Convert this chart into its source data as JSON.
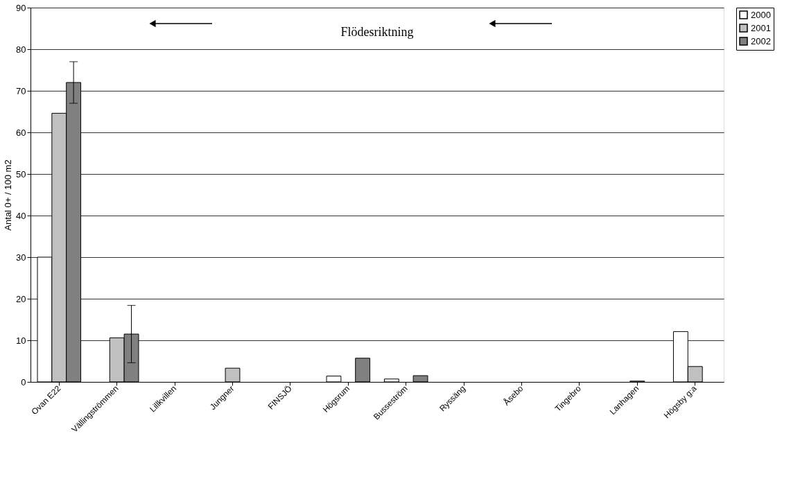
{
  "chart_data": {
    "type": "bar",
    "categories": [
      "Ovan E22",
      "Vällingströmmen",
      "Lillkvillen",
      "Jungner",
      "FINSJÖ",
      "Högsrum",
      "Busseström",
      "Ryssäng",
      "Åsebo",
      "Tingebro",
      "Lanhagen",
      "Högsby g:a"
    ],
    "series": [
      {
        "name": "2000",
        "color": "#ffffff",
        "values": [
          30,
          null,
          null,
          null,
          null,
          1.4,
          0.7,
          null,
          null,
          null,
          null,
          12.1
        ]
      },
      {
        "name": "2001",
        "color": "#c0c0c0",
        "values": [
          64.6,
          10.6,
          null,
          3.3,
          null,
          null,
          null,
          null,
          null,
          null,
          0.2,
          3.7
        ]
      },
      {
        "name": "2002",
        "color": "#808080",
        "values": [
          72,
          11.5,
          null,
          null,
          null,
          5.7,
          1.5,
          null,
          null,
          null,
          null,
          null
        ],
        "errors": [
          5,
          6.9,
          null,
          null,
          null,
          null,
          null,
          null,
          null,
          null,
          null,
          null
        ]
      }
    ],
    "ylabel": "Antal 0+ / 100 m2",
    "ylim": [
      0,
      90
    ],
    "yticks": [
      0,
      10,
      20,
      30,
      40,
      50,
      60,
      70,
      80,
      90
    ],
    "grid": "y",
    "legend": "right",
    "annotations": [
      "Flödesriktning"
    ]
  }
}
